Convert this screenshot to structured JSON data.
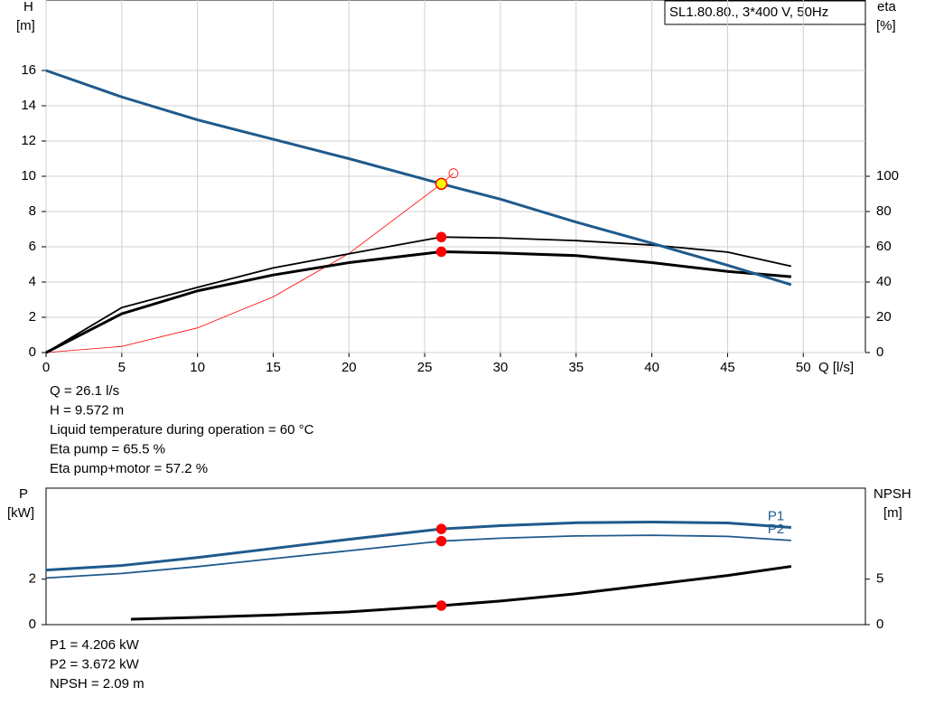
{
  "chart_data": [
    {
      "type": "line",
      "model": "SL1.80.80., 3*400 V, 50Hz",
      "y_label": "H",
      "y_unit": "[m]",
      "y2_label": "eta",
      "y2_unit": "[%]",
      "x_label": "Q [l/s]",
      "xlim": [
        0,
        54.1
      ],
      "xticks": [
        0,
        5,
        10,
        15,
        20,
        25,
        30,
        35,
        40,
        45,
        50
      ],
      "ylim": [
        0,
        20
      ],
      "yticks": [
        0,
        2,
        4,
        6,
        8,
        10,
        12,
        14,
        16
      ],
      "y2lim": [
        0,
        200
      ],
      "y2ticks": [
        0,
        20,
        40,
        60,
        80,
        100
      ],
      "grid": true,
      "series": [
        {
          "color": "#ff0000",
          "width": 0.8,
          "end_marker": true,
          "x": [
            0,
            5,
            10,
            15,
            20,
            26.1,
            26.9
          ],
          "values": [
            0,
            0.35,
            1.4,
            3.16,
            5.62,
            9.57,
            10.17
          ]
        },
        {
          "color": "#000000",
          "width": 1.8,
          "axis": "y2",
          "x": [
            0,
            5,
            10,
            15,
            20,
            26.1,
            30,
            35,
            40,
            45,
            49.2
          ],
          "values": [
            0,
            25.5,
            37,
            48,
            56,
            65.5,
            65,
            63.5,
            61,
            57,
            49
          ]
        },
        {
          "color": "#000000",
          "width": 3,
          "axis": "y2",
          "x": [
            0,
            5,
            10,
            15,
            20,
            26.1,
            30,
            35,
            40,
            45,
            49.2
          ],
          "values": [
            0,
            22,
            35,
            44,
            51,
            57.2,
            56.5,
            55,
            51,
            46,
            43
          ]
        },
        {
          "color": "#1f5a8c",
          "width": 3,
          "x": [
            0,
            5,
            10,
            15,
            20,
            26.1,
            30,
            35,
            40,
            45,
            49.2
          ],
          "values": [
            16,
            14.5,
            13.2,
            12.1,
            11.0,
            9.572,
            8.7,
            7.4,
            6.2,
            4.95,
            3.85
          ]
        }
      ],
      "operating_point": {
        "x": 26.1,
        "h": 9.572,
        "eta_pump": 65.5,
        "eta_total": 57.2
      },
      "info": [
        "Q = 26.1 l/s",
        "H = 9.572 m",
        "Liquid temperature during operation = 60 °C",
        "Eta pump = 65.5 %",
        "Eta pump+motor = 57.2 %"
      ]
    },
    {
      "type": "line",
      "y_label": "P",
      "y_unit": "[kW]",
      "y2_label": "NPSH",
      "y2_unit": "[m]",
      "xlim": [
        0,
        54.1
      ],
      "ylim": [
        0,
        6
      ],
      "yticks": [
        0,
        2
      ],
      "y2lim": [
        0,
        15
      ],
      "y2ticks": [
        0,
        5
      ],
      "series": [
        {
          "name": "P1",
          "color": "#1f5a8c",
          "width": 3,
          "x": [
            0,
            5,
            10,
            15,
            20,
            26.1,
            30,
            35,
            40,
            45,
            49.2
          ],
          "values": [
            2.4,
            2.6,
            2.95,
            3.35,
            3.75,
            4.206,
            4.35,
            4.48,
            4.51,
            4.47,
            4.27
          ]
        },
        {
          "name": "P2",
          "color": "#1f5a8c",
          "width": 1.8,
          "x": [
            0,
            5,
            10,
            15,
            20,
            26.1,
            30,
            35,
            40,
            45,
            49.2
          ],
          "values": [
            2.05,
            2.25,
            2.55,
            2.9,
            3.25,
            3.672,
            3.8,
            3.9,
            3.93,
            3.88,
            3.7
          ]
        },
        {
          "color": "#000000",
          "width": 3,
          "axis": "y2",
          "x": [
            5.6,
            10,
            15,
            20,
            26.1,
            30,
            35,
            40,
            45,
            49.2
          ],
          "values": [
            0.6,
            0.8,
            1.05,
            1.4,
            2.09,
            2.6,
            3.4,
            4.4,
            5.4,
            6.4
          ]
        }
      ],
      "operating_point": {
        "x": 26.1,
        "p1": 4.206,
        "p2": 3.672,
        "npsh": 2.09
      },
      "info": [
        "P1 = 4.206 kW",
        "P2 = 3.672 kW",
        "NPSH = 2.09 m"
      ]
    }
  ]
}
